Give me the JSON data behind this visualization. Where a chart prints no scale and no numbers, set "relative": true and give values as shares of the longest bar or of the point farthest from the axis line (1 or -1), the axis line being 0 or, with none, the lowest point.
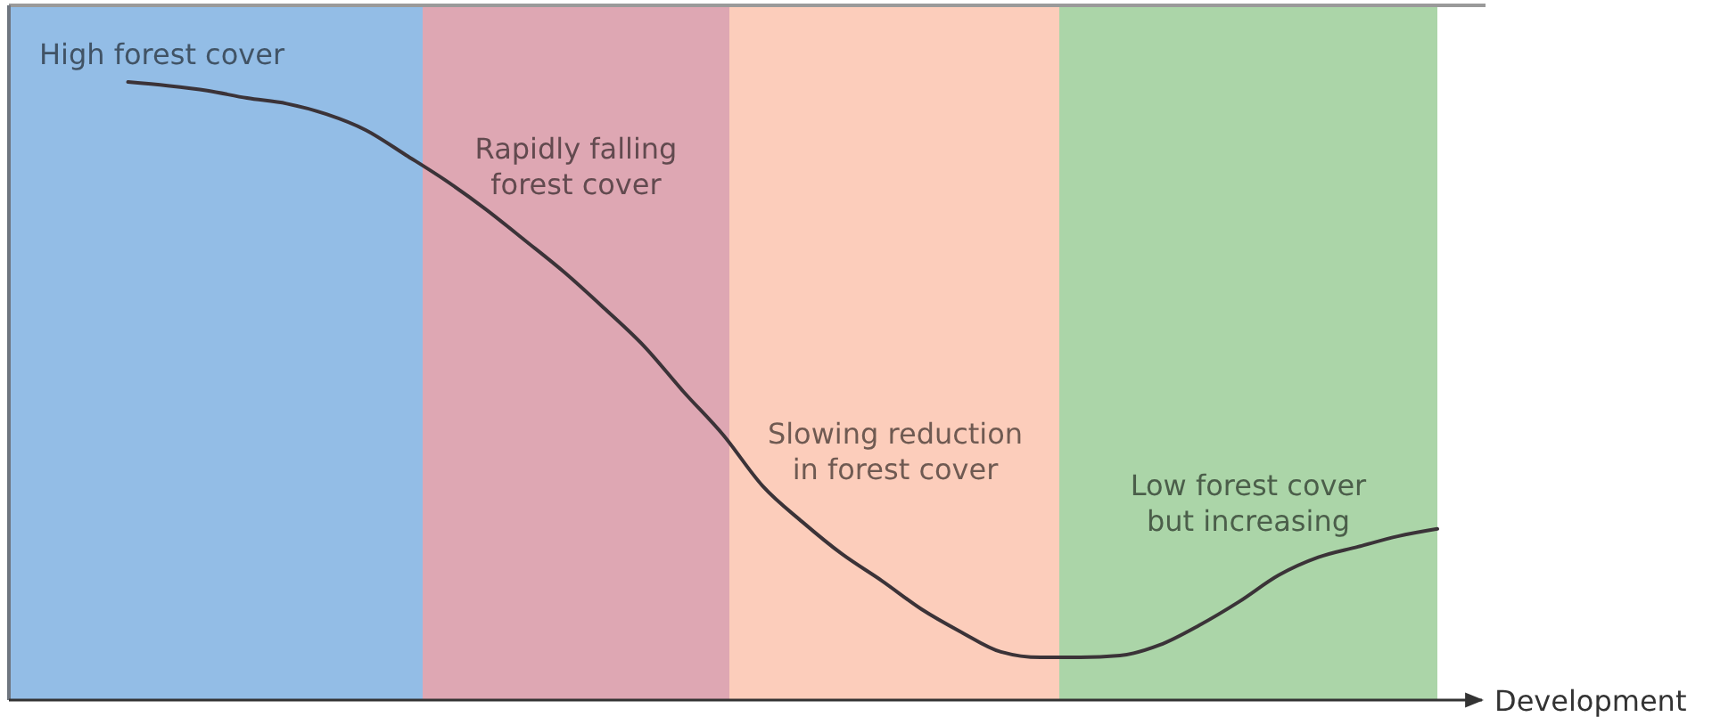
{
  "chart_data": {
    "type": "line",
    "relative": true,
    "xlabel": "Development",
    "categories": [
      null,
      null,
      null,
      null,
      null,
      null,
      null,
      null,
      null,
      null,
      null,
      null,
      null,
      null,
      null,
      null,
      null,
      null,
      null,
      null,
      null,
      null,
      null,
      null,
      null,
      null,
      null,
      null,
      null,
      null,
      null,
      null,
      null,
      null,
      null,
      null,
      null
    ],
    "values": [
      null,
      null,
      null,
      1.0,
      0.994,
      0.986,
      0.974,
      0.965,
      0.948,
      0.922,
      0.882,
      0.841,
      0.795,
      0.744,
      0.692,
      0.634,
      0.573,
      0.499,
      0.429,
      0.346,
      0.288,
      0.236,
      0.193,
      0.147,
      0.11,
      0.078,
      0.069,
      0.069,
      0.072,
      0.089,
      0.121,
      0.159,
      0.202,
      0.231,
      0.248,
      0.265,
      0.277
    ],
    "color": "#3b3338",
    "annotations": [
      "High forest cover",
      "Rapidly falling\nforest cover",
      "Slowing reduction\nin forest cover",
      "Low forest cover\nbut increasing"
    ]
  }
}
